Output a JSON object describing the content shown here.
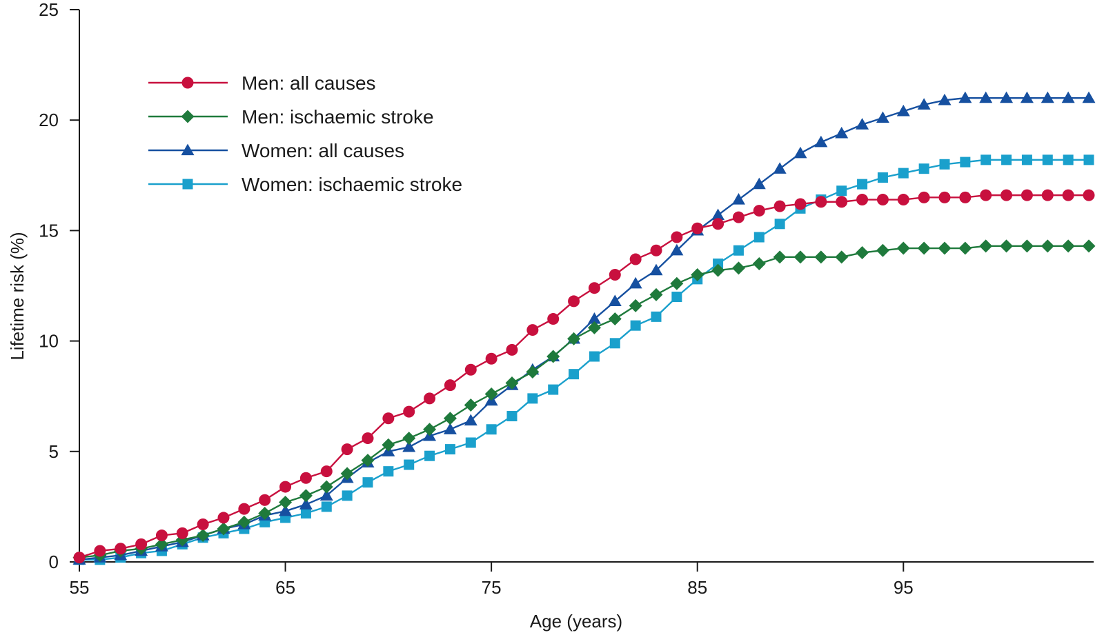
{
  "chart_data": {
    "type": "line",
    "title": "",
    "xlabel": "Age (years)",
    "ylabel": "Lifetime risk (%)",
    "xlim": [
      55,
      104
    ],
    "ylim": [
      0,
      25
    ],
    "x_ticks": [
      55,
      65,
      75,
      85,
      95
    ],
    "y_ticks": [
      0,
      5,
      10,
      15,
      20,
      25
    ],
    "legend_position": "top-left",
    "grid": false,
    "x": [
      55,
      56,
      57,
      58,
      59,
      60,
      61,
      62,
      63,
      64,
      65,
      66,
      67,
      68,
      69,
      70,
      71,
      72,
      73,
      74,
      75,
      76,
      77,
      78,
      79,
      80,
      81,
      82,
      83,
      84,
      85,
      86,
      87,
      88,
      89,
      90,
      91,
      92,
      93,
      94,
      95,
      96,
      97,
      98,
      99,
      100,
      101,
      102,
      103,
      104
    ],
    "series": [
      {
        "name": "Men: all causes",
        "color": "#c8103e",
        "marker": "circle",
        "values": [
          0.2,
          0.5,
          0.6,
          0.8,
          1.2,
          1.3,
          1.7,
          2.0,
          2.4,
          2.8,
          3.4,
          3.8,
          4.1,
          5.1,
          5.6,
          6.5,
          6.8,
          7.4,
          8.0,
          8.7,
          9.2,
          9.6,
          10.5,
          11.0,
          11.8,
          12.4,
          13.0,
          13.7,
          14.1,
          14.7,
          15.1,
          15.3,
          15.6,
          15.9,
          16.1,
          16.2,
          16.3,
          16.3,
          16.4,
          16.4,
          16.4,
          16.5,
          16.5,
          16.5,
          16.6,
          16.6,
          16.6,
          16.6,
          16.6,
          16.6
        ]
      },
      {
        "name": "Men: ischaemic stroke",
        "color": "#1f7a3c",
        "marker": "diamond",
        "values": [
          0.2,
          0.3,
          0.5,
          0.6,
          0.8,
          1.0,
          1.2,
          1.5,
          1.8,
          2.2,
          2.7,
          3.0,
          3.4,
          4.0,
          4.6,
          5.3,
          5.6,
          6.0,
          6.5,
          7.1,
          7.6,
          8.1,
          8.6,
          9.3,
          10.1,
          10.6,
          11.0,
          11.6,
          12.1,
          12.6,
          13.0,
          13.2,
          13.3,
          13.5,
          13.8,
          13.8,
          13.8,
          13.8,
          14.0,
          14.1,
          14.2,
          14.2,
          14.2,
          14.2,
          14.3,
          14.3,
          14.3,
          14.3,
          14.3,
          14.3
        ]
      },
      {
        "name": "Women: all causes",
        "color": "#1650a0",
        "marker": "triangle",
        "values": [
          0.1,
          0.2,
          0.3,
          0.5,
          0.7,
          0.9,
          1.2,
          1.5,
          1.7,
          2.1,
          2.3,
          2.6,
          3.0,
          3.8,
          4.5,
          5.0,
          5.2,
          5.7,
          6.0,
          6.4,
          7.3,
          8.0,
          8.7,
          9.3,
          10.1,
          11.0,
          11.8,
          12.6,
          13.2,
          14.1,
          15.0,
          15.7,
          16.4,
          17.1,
          17.8,
          18.5,
          19.0,
          19.4,
          19.8,
          20.1,
          20.4,
          20.7,
          20.9,
          21.0,
          21.0,
          21.0,
          21.0,
          21.0,
          21.0,
          21.0
        ]
      },
      {
        "name": "Women: ischaemic stroke",
        "color": "#1aa0cc",
        "marker": "square",
        "values": [
          0.1,
          0.1,
          0.2,
          0.4,
          0.5,
          0.8,
          1.1,
          1.3,
          1.5,
          1.8,
          2.0,
          2.2,
          2.5,
          3.0,
          3.6,
          4.1,
          4.4,
          4.8,
          5.1,
          5.4,
          6.0,
          6.6,
          7.4,
          7.8,
          8.5,
          9.3,
          9.9,
          10.7,
          11.1,
          12.0,
          12.8,
          13.5,
          14.1,
          14.7,
          15.3,
          16.0,
          16.4,
          16.8,
          17.1,
          17.4,
          17.6,
          17.8,
          18.0,
          18.1,
          18.2,
          18.2,
          18.2,
          18.2,
          18.2,
          18.2
        ]
      }
    ]
  }
}
